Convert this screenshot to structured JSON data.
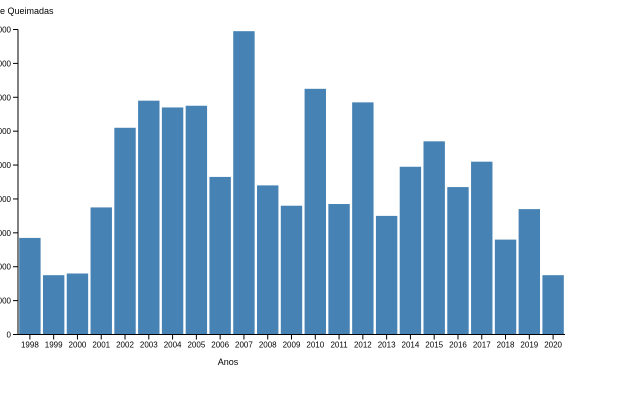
{
  "chart_data": {
    "type": "bar",
    "title": "",
    "xlabel": "Anos",
    "ylabel": "e Queimadas",
    "categories": [
      "1998",
      "1999",
      "2000",
      "2001",
      "2002",
      "2003",
      "2004",
      "2005",
      "2006",
      "2007",
      "2008",
      "2009",
      "2010",
      "2011",
      "2012",
      "2013",
      "2014",
      "2015",
      "2016",
      "2017",
      "2018",
      "2019",
      "2020"
    ],
    "values": [
      2850,
      1750,
      1800,
      3750,
      6100,
      6900,
      6700,
      6750,
      4650,
      8950,
      4400,
      3800,
      7250,
      3850,
      6850,
      3500,
      4950,
      5700,
      4350,
      5100,
      2800,
      3700,
      1750
    ],
    "y_tick_labels": [
      "0",
      "000",
      "000",
      "000",
      "000",
      "000",
      "000",
      "000",
      "000",
      "000"
    ],
    "ylim": [
      0,
      9000
    ],
    "grid": false,
    "legend": "none",
    "bar_color": "#4682b4"
  }
}
